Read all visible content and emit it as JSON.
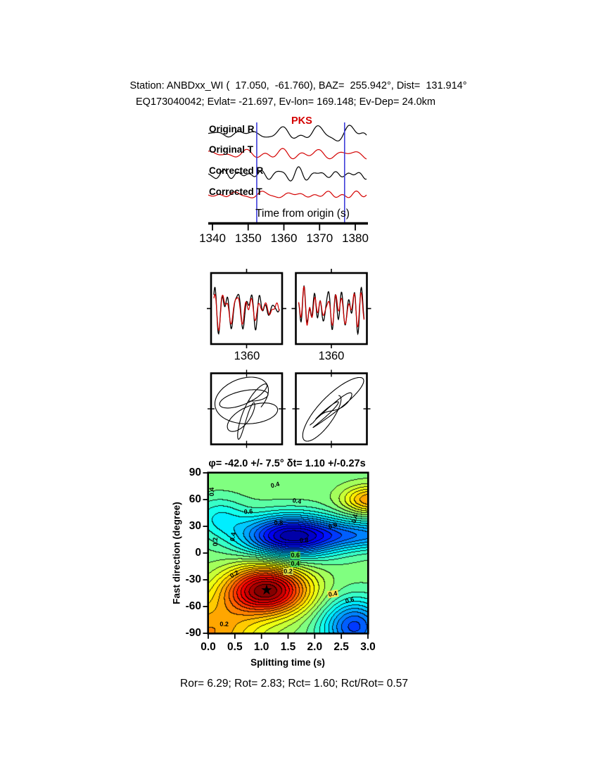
{
  "header": {
    "line1": "Station: ANBDxx_WI (  17.050,  -61.760), BAZ=  255.942°, Dist=  131.914°",
    "line2": "EQ173040042; Evlat= -21.697, Ev-lon= 169.148; Ev-Dep= 24.0km"
  },
  "results": {
    "line": "Ror= 6.29; Rot= 2.83; Rct= 1.60; Rct/Rot= 0.57"
  },
  "chart_data": [
    {
      "type": "line",
      "panel": "seismogram-traces",
      "phase": "PKS",
      "phase_color": "#d40000",
      "xlabel": "Time from origin (s)",
      "xticks": [
        1340,
        1350,
        1360,
        1370,
        1380
      ],
      "xlim": [
        1338.8,
        1383.0
      ],
      "window_s": [
        1352.4,
        1377.0
      ],
      "window_color": "#3c3cd9",
      "series": [
        {
          "name": "Original R",
          "color": "#000000",
          "amp": 12,
          "seed": 101
        },
        {
          "name": "Original T",
          "color": "#d40000",
          "amp": 8,
          "seed": 202
        },
        {
          "name": "Corrected R",
          "color": "#000000",
          "amp": 11,
          "seed": 303
        },
        {
          "name": "Corrected T",
          "color": "#d40000",
          "amp": 5.5,
          "seed": 404
        }
      ]
    },
    {
      "type": "line",
      "panel": "fast-slow-comparison",
      "xticks": [
        "1360",
        "1360"
      ],
      "panels": [
        {
          "seed": 515,
          "colors": [
            "#000000",
            "#d40000"
          ]
        },
        {
          "seed": 626,
          "colors": [
            "#000000",
            "#d40000"
          ]
        }
      ]
    },
    {
      "type": "scatter",
      "panel": "particle-motion",
      "panels": [
        {
          "style": "elliptical",
          "seeds": [
            737,
            747
          ]
        },
        {
          "style": "linearized-diagonal",
          "seeds": [
            858,
            868
          ]
        }
      ]
    },
    {
      "type": "heatmap",
      "panel": "splitting-parameter-misfit",
      "title": "φ= -42.0 +/- 7.5° δt= 1.10 +/-0.27s",
      "xlabel": "Splitting time (s)",
      "ylabel": "Fast direction (degree)",
      "xticks": [
        "0.0",
        "0.5",
        "1.0",
        "1.5",
        "2.0",
        "2.5",
        "3.0"
      ],
      "yticks": [
        "90",
        "60",
        "30",
        "0",
        "-30",
        "-60",
        "-90"
      ],
      "xlim": [
        0,
        3
      ],
      "ylim": [
        -90,
        90
      ],
      "colormap": "jet",
      "grid": false,
      "best_fit": {
        "phi_deg": -42.0,
        "phi_err_deg": 7.5,
        "dt_s": 1.1,
        "dt_err_s": 0.27
      },
      "star": {
        "x": 1.1,
        "y": -42,
        "glyph": "★"
      },
      "contour_step": 0.085,
      "field_components": [
        [
          1.2,
          1.1,
          0.78,
          -42,
          27
        ],
        [
          0.55,
          0.0,
          0.95,
          -90,
          38
        ],
        [
          -1.1,
          1.55,
          0.9,
          19,
          23
        ],
        [
          -0.5,
          3.0,
          0.9,
          20,
          16
        ],
        [
          -0.75,
          2.75,
          0.6,
          -83,
          30
        ],
        [
          0.55,
          3.05,
          0.5,
          60,
          15
        ],
        [
          -0.28,
          0.2,
          0.5,
          40,
          22
        ]
      ],
      "contour_labels": [
        {
          "t": "0.4",
          "fx": 0.42,
          "fy": 0.075,
          "rot": -15
        },
        {
          "t": "0.4",
          "fx": 0.555,
          "fy": 0.175,
          "rot": 10
        },
        {
          "t": "0.6",
          "fx": 0.25,
          "fy": 0.24,
          "rot": -5
        },
        {
          "t": "0.8",
          "fx": 0.44,
          "fy": 0.31,
          "rot": 0
        },
        {
          "t": "0.8",
          "fx": 0.6,
          "fy": 0.42,
          "rot": 0
        },
        {
          "t": "0.4",
          "fx": 0.915,
          "fy": 0.285,
          "rot": -75
        },
        {
          "t": "0.6",
          "fx": 0.78,
          "fy": 0.33,
          "rot": -20
        },
        {
          "t": "0.2",
          "fx": 0.045,
          "fy": 0.43,
          "rot": -90
        },
        {
          "t": "0.4",
          "fx": 0.155,
          "fy": 0.4,
          "rot": -80
        },
        {
          "t": "0.6",
          "fx": 0.545,
          "fy": 0.515,
          "rot": 0,
          "bg": "#4fd54f"
        },
        {
          "t": "0.4",
          "fx": 0.545,
          "fy": 0.565,
          "rot": 0,
          "bg": "#4fd54f"
        },
        {
          "t": "0.2",
          "fx": 0.5,
          "fy": 0.615,
          "rot": 0,
          "bg": "#e2e24a"
        },
        {
          "t": "0.2",
          "fx": 0.165,
          "fy": 0.63,
          "rot": -30
        },
        {
          "t": "0.4",
          "fx": 0.78,
          "fy": 0.755,
          "rot": -10,
          "bg": "#ffe34d"
        },
        {
          "t": "0.6",
          "fx": 0.885,
          "fy": 0.795,
          "rot": -15
        },
        {
          "t": "0.2",
          "fx": 0.1,
          "fy": 0.945,
          "rot": 0
        },
        {
          "t": "0.4",
          "fx": 0.02,
          "fy": 0.12,
          "rot": -90
        }
      ]
    }
  ]
}
